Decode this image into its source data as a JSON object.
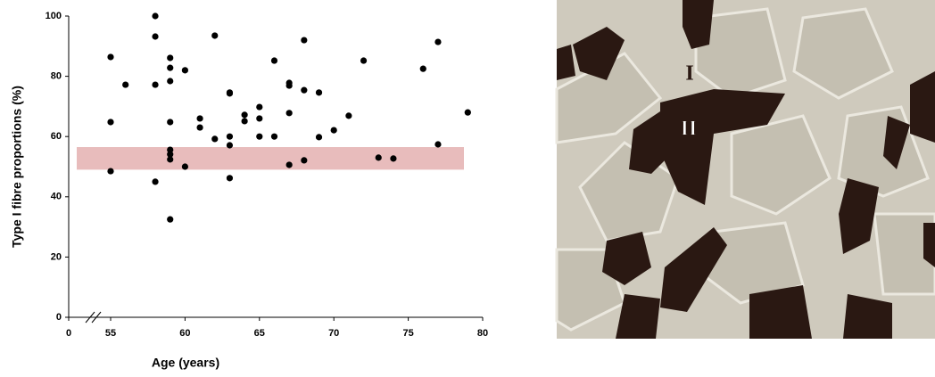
{
  "chart_data": {
    "type": "scatter",
    "x_label": "Age (years)",
    "y_label": "Type I fibre proportions (%)",
    "xlim": [
      0,
      80
    ],
    "xticks": [
      0,
      55,
      60,
      65,
      70,
      75,
      80
    ],
    "x_axis_break": true,
    "ylim": [
      0,
      100
    ],
    "yticks": [
      0,
      20,
      40,
      60,
      80,
      100
    ],
    "reference_band": {
      "range": [
        49,
        56.5
      ],
      "color": "#e8bcbc"
    },
    "color": "#000000",
    "x": [
      55,
      55,
      55,
      56,
      58,
      58,
      58,
      58,
      59,
      59,
      59,
      59,
      59,
      59,
      59,
      59,
      60,
      60,
      61,
      61,
      62,
      62,
      63,
      63,
      63,
      63,
      63,
      64,
      64,
      65,
      65,
      65,
      66,
      66,
      67,
      67,
      67,
      67,
      68,
      68,
      68,
      69,
      69,
      70,
      71,
      72,
      73,
      74,
      76,
      77,
      77,
      79
    ],
    "values": [
      86.4,
      64.8,
      48.5,
      77.2,
      100,
      93.2,
      77.2,
      45,
      86.1,
      82.8,
      78.4,
      64.8,
      55.6,
      54.1,
      52.4,
      32.5,
      82,
      50,
      66,
      63,
      93.5,
      59.2,
      74.6,
      74.3,
      60,
      57.1,
      46.2,
      67.2,
      65.1,
      69.8,
      66,
      60,
      85.2,
      60,
      77.8,
      76.9,
      67.8,
      50.6,
      92,
      75.4,
      52.1,
      74.6,
      59.8,
      62.1,
      66.9,
      85.2,
      53,
      52.7,
      82.5,
      91.4,
      57.4,
      68
    ]
  },
  "micrograph": {
    "labels": [
      "I",
      "II"
    ]
  }
}
